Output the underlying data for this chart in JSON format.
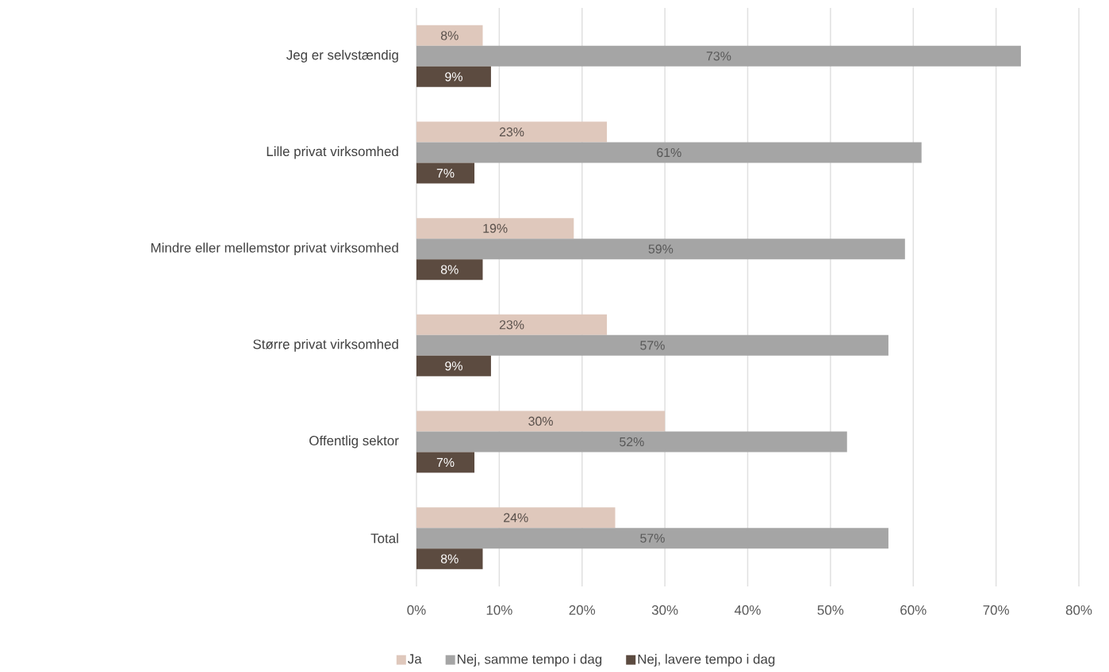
{
  "chart_data": {
    "type": "bar",
    "orientation": "horizontal",
    "categories": [
      "Jeg er selvstændig",
      "Lille privat virksomhed",
      "Mindre eller mellemstor privat virksomhed",
      "Større privat virksomhed",
      "Offentlig sektor",
      "Total"
    ],
    "series": [
      {
        "name": "Ja",
        "color": "#dfc8bc",
        "values": [
          8,
          23,
          19,
          23,
          30,
          24
        ],
        "value_labels": [
          "8%",
          "23%",
          "19%",
          "23%",
          "30%",
          "24%"
        ]
      },
      {
        "name": "Nej, samme tempo i dag",
        "color": "#a5a5a5",
        "values": [
          73,
          61,
          59,
          57,
          52,
          57
        ],
        "value_labels": [
          "73%",
          "61%",
          "59%",
          "57%",
          "52%",
          "57%"
        ]
      },
      {
        "name": "Nej, lavere tempo i dag",
        "color": "#5c4b40",
        "values": [
          9,
          7,
          8,
          9,
          7,
          8
        ],
        "value_labels": [
          "9%",
          "7%",
          "8%",
          "9%",
          "7%",
          "8%"
        ]
      }
    ],
    "xlim": [
      0,
      80
    ],
    "xticks": [
      {
        "value": 0,
        "label": "0%"
      },
      {
        "value": 10,
        "label": "10%"
      },
      {
        "value": 20,
        "label": "20%"
      },
      {
        "value": 30,
        "label": "30%"
      },
      {
        "value": 40,
        "label": "40%"
      },
      {
        "value": 50,
        "label": "50%"
      },
      {
        "value": 60,
        "label": "60%"
      },
      {
        "value": 70,
        "label": "70%"
      },
      {
        "value": 80,
        "label": "80%"
      }
    ],
    "grid": "x",
    "legend": "bottom"
  }
}
